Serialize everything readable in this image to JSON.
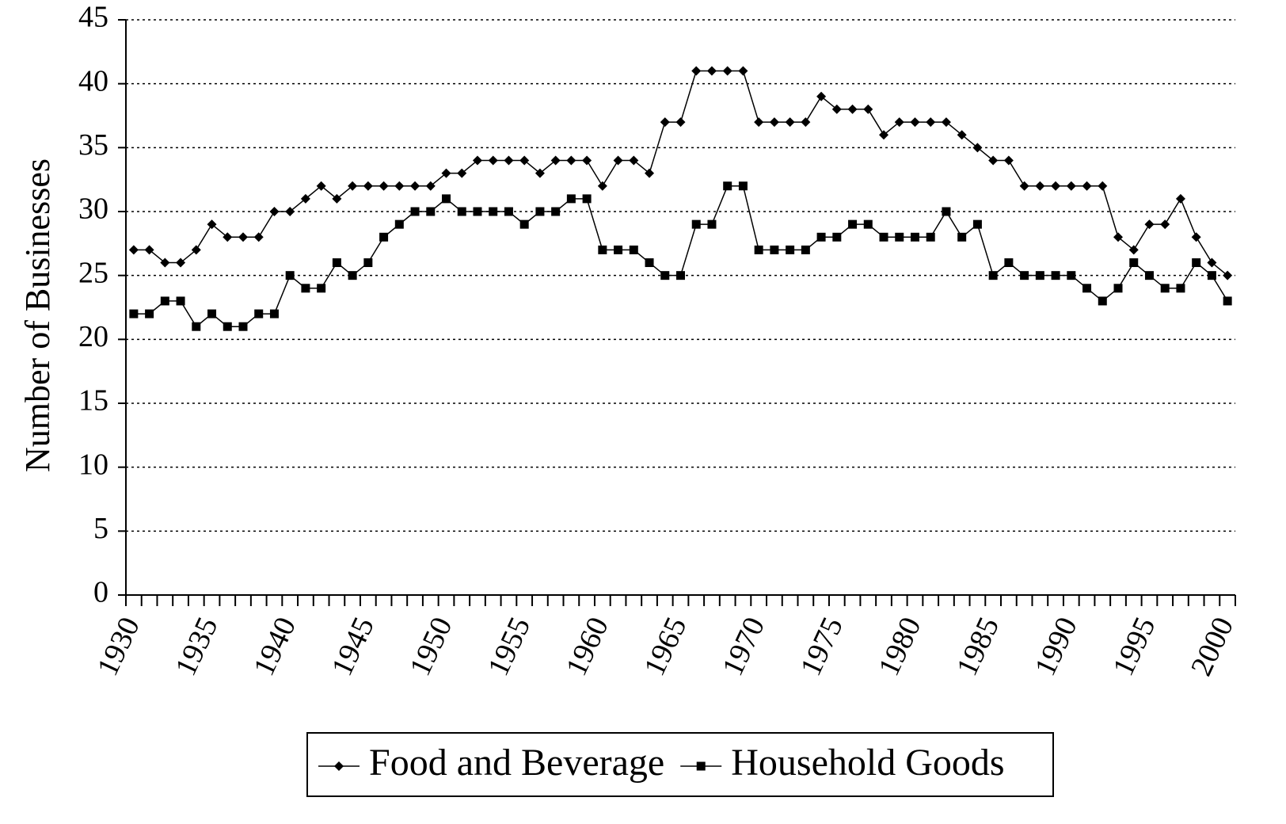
{
  "chart_data": {
    "type": "line",
    "y_label": "Number of Businesses",
    "categories": [
      "1930",
      null,
      null,
      null,
      null,
      "1935",
      null,
      null,
      null,
      null,
      "1940",
      null,
      null,
      null,
      null,
      "1945",
      null,
      null,
      null,
      null,
      "1950",
      null,
      null,
      null,
      null,
      "1955",
      null,
      null,
      null,
      null,
      "1960",
      null,
      null,
      null,
      null,
      "1965",
      null,
      null,
      null,
      null,
      "1970",
      null,
      null,
      null,
      null,
      "1975",
      null,
      null,
      null,
      null,
      "1980",
      null,
      null,
      null,
      null,
      "1985",
      null,
      null,
      null,
      null,
      "1990",
      null,
      null,
      null,
      null,
      "1995",
      null,
      null,
      null,
      null,
      "2000"
    ],
    "series": [
      {
        "name": "Food and Beverage",
        "color": "#000000",
        "marker": "diamond",
        "values": [
          27,
          27,
          26,
          26,
          27,
          29,
          28,
          28,
          28,
          30,
          30,
          31,
          32,
          31,
          32,
          32,
          32,
          32,
          32,
          32,
          33,
          33,
          34,
          34,
          34,
          34,
          33,
          34,
          34,
          34,
          32,
          34,
          34,
          33,
          37,
          37,
          41,
          41,
          41,
          41,
          37,
          37,
          37,
          37,
          39,
          38,
          38,
          38,
          36,
          37,
          37,
          37,
          37,
          36,
          35,
          34,
          34,
          32,
          32,
          32,
          32,
          32,
          32,
          28,
          27,
          29,
          29,
          31,
          28,
          26,
          25
        ]
      },
      {
        "name": "Household Goods",
        "color": "#000000",
        "marker": "square",
        "values": [
          22,
          22,
          23,
          23,
          21,
          22,
          21,
          21,
          22,
          22,
          25,
          24,
          24,
          26,
          25,
          26,
          28,
          29,
          30,
          30,
          31,
          30,
          30,
          30,
          30,
          29,
          30,
          30,
          31,
          31,
          27,
          27,
          27,
          26,
          25,
          25,
          29,
          29,
          32,
          32,
          27,
          27,
          27,
          27,
          28,
          28,
          29,
          29,
          28,
          28,
          28,
          28,
          30,
          28,
          29,
          25,
          26,
          25,
          25,
          25,
          25,
          24,
          23,
          24,
          26,
          25,
          24,
          24,
          26,
          25,
          23
        ]
      }
    ],
    "ylim": [
      0,
      45
    ],
    "yticks": [
      0,
      5,
      10,
      15,
      20,
      25,
      30,
      35,
      40,
      45
    ],
    "grid": true,
    "legend": "bottom"
  }
}
